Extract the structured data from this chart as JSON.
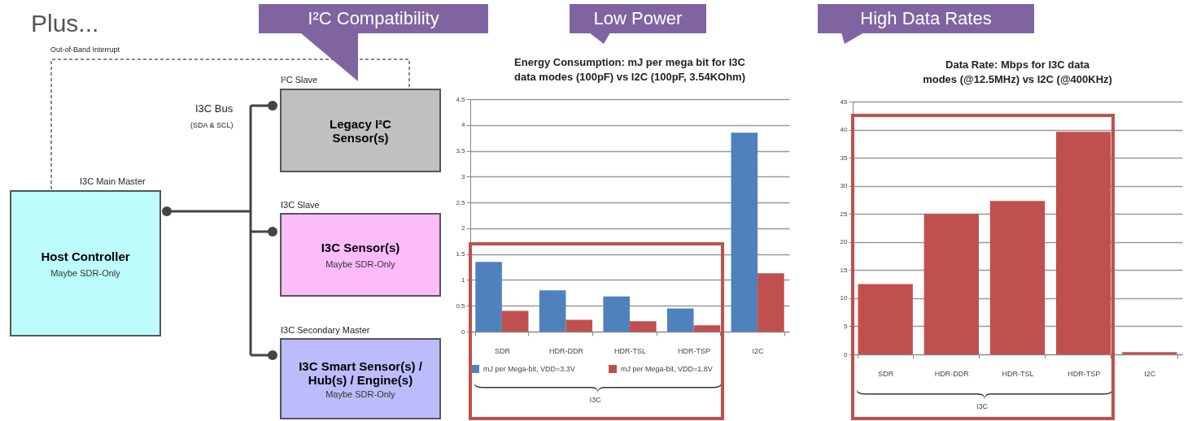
{
  "chart_data": [
    {
      "type": "other",
      "title": "Plus...",
      "annotations": [
        "I²C Compatibility",
        "Out-of-Band Interrupt",
        "I²C Slave",
        "Legacy I²C Sensor(s)",
        "I3C Bus",
        "(SDA & SCL)",
        "I3C Main Master",
        "Host Controller",
        "Maybe SDR-Only",
        "I3C Slave",
        "I3C Sensor(s)",
        "Maybe SDR-Only",
        "I3C Secondary Master",
        "I3C Smart Sensor(s) / Hub(s) / Engine(s)",
        "Maybe SDR-Only"
      ]
    },
    {
      "type": "bar",
      "title": "Energy Consumption: mJ per mega bit for I3C data modes (100pF) vs I2C (100pF, 3.54KOhm)",
      "annotations": [
        "Low Power",
        "I3C"
      ],
      "categories": [
        "SDR",
        "HDR-DDR",
        "HDR-TSL",
        "HDR-TSP",
        "I2C"
      ],
      "series": [
        {
          "name": "mJ per Mega-bit, VDD=3.3V",
          "color": "#4f81bd",
          "values": [
            1.35,
            0.8,
            0.68,
            0.45,
            3.85
          ]
        },
        {
          "name": "mJ per Mega-bit, VDD=1.8V",
          "color": "#c0504d",
          "values": [
            0.4,
            0.23,
            0.2,
            0.12,
            1.13
          ]
        }
      ],
      "ylim": [
        0,
        4.5
      ],
      "yticks": [
        0,
        0.5,
        1,
        1.5,
        2,
        2.5,
        3,
        3.5,
        4,
        4.5
      ],
      "grid": "y",
      "legend": "bottom"
    },
    {
      "type": "bar",
      "title": "Data Rate: Mbps for I3C data modes (@12.5MHz) vs I2C (@400KHz)",
      "annotations": [
        "High Data Rates",
        "I3C"
      ],
      "categories": [
        "SDR",
        "HDR-DDR",
        "HDR-TSL",
        "HDR-TSP",
        "I2C"
      ],
      "series": [
        {
          "color": "#c0504d",
          "values": [
            12.5,
            25,
            27.3,
            39.6,
            0.4
          ]
        }
      ],
      "ylim": [
        0,
        45
      ],
      "yticks": [
        0,
        5,
        10,
        15,
        20,
        25,
        30,
        35,
        40,
        45
      ],
      "grid": "y"
    }
  ]
}
